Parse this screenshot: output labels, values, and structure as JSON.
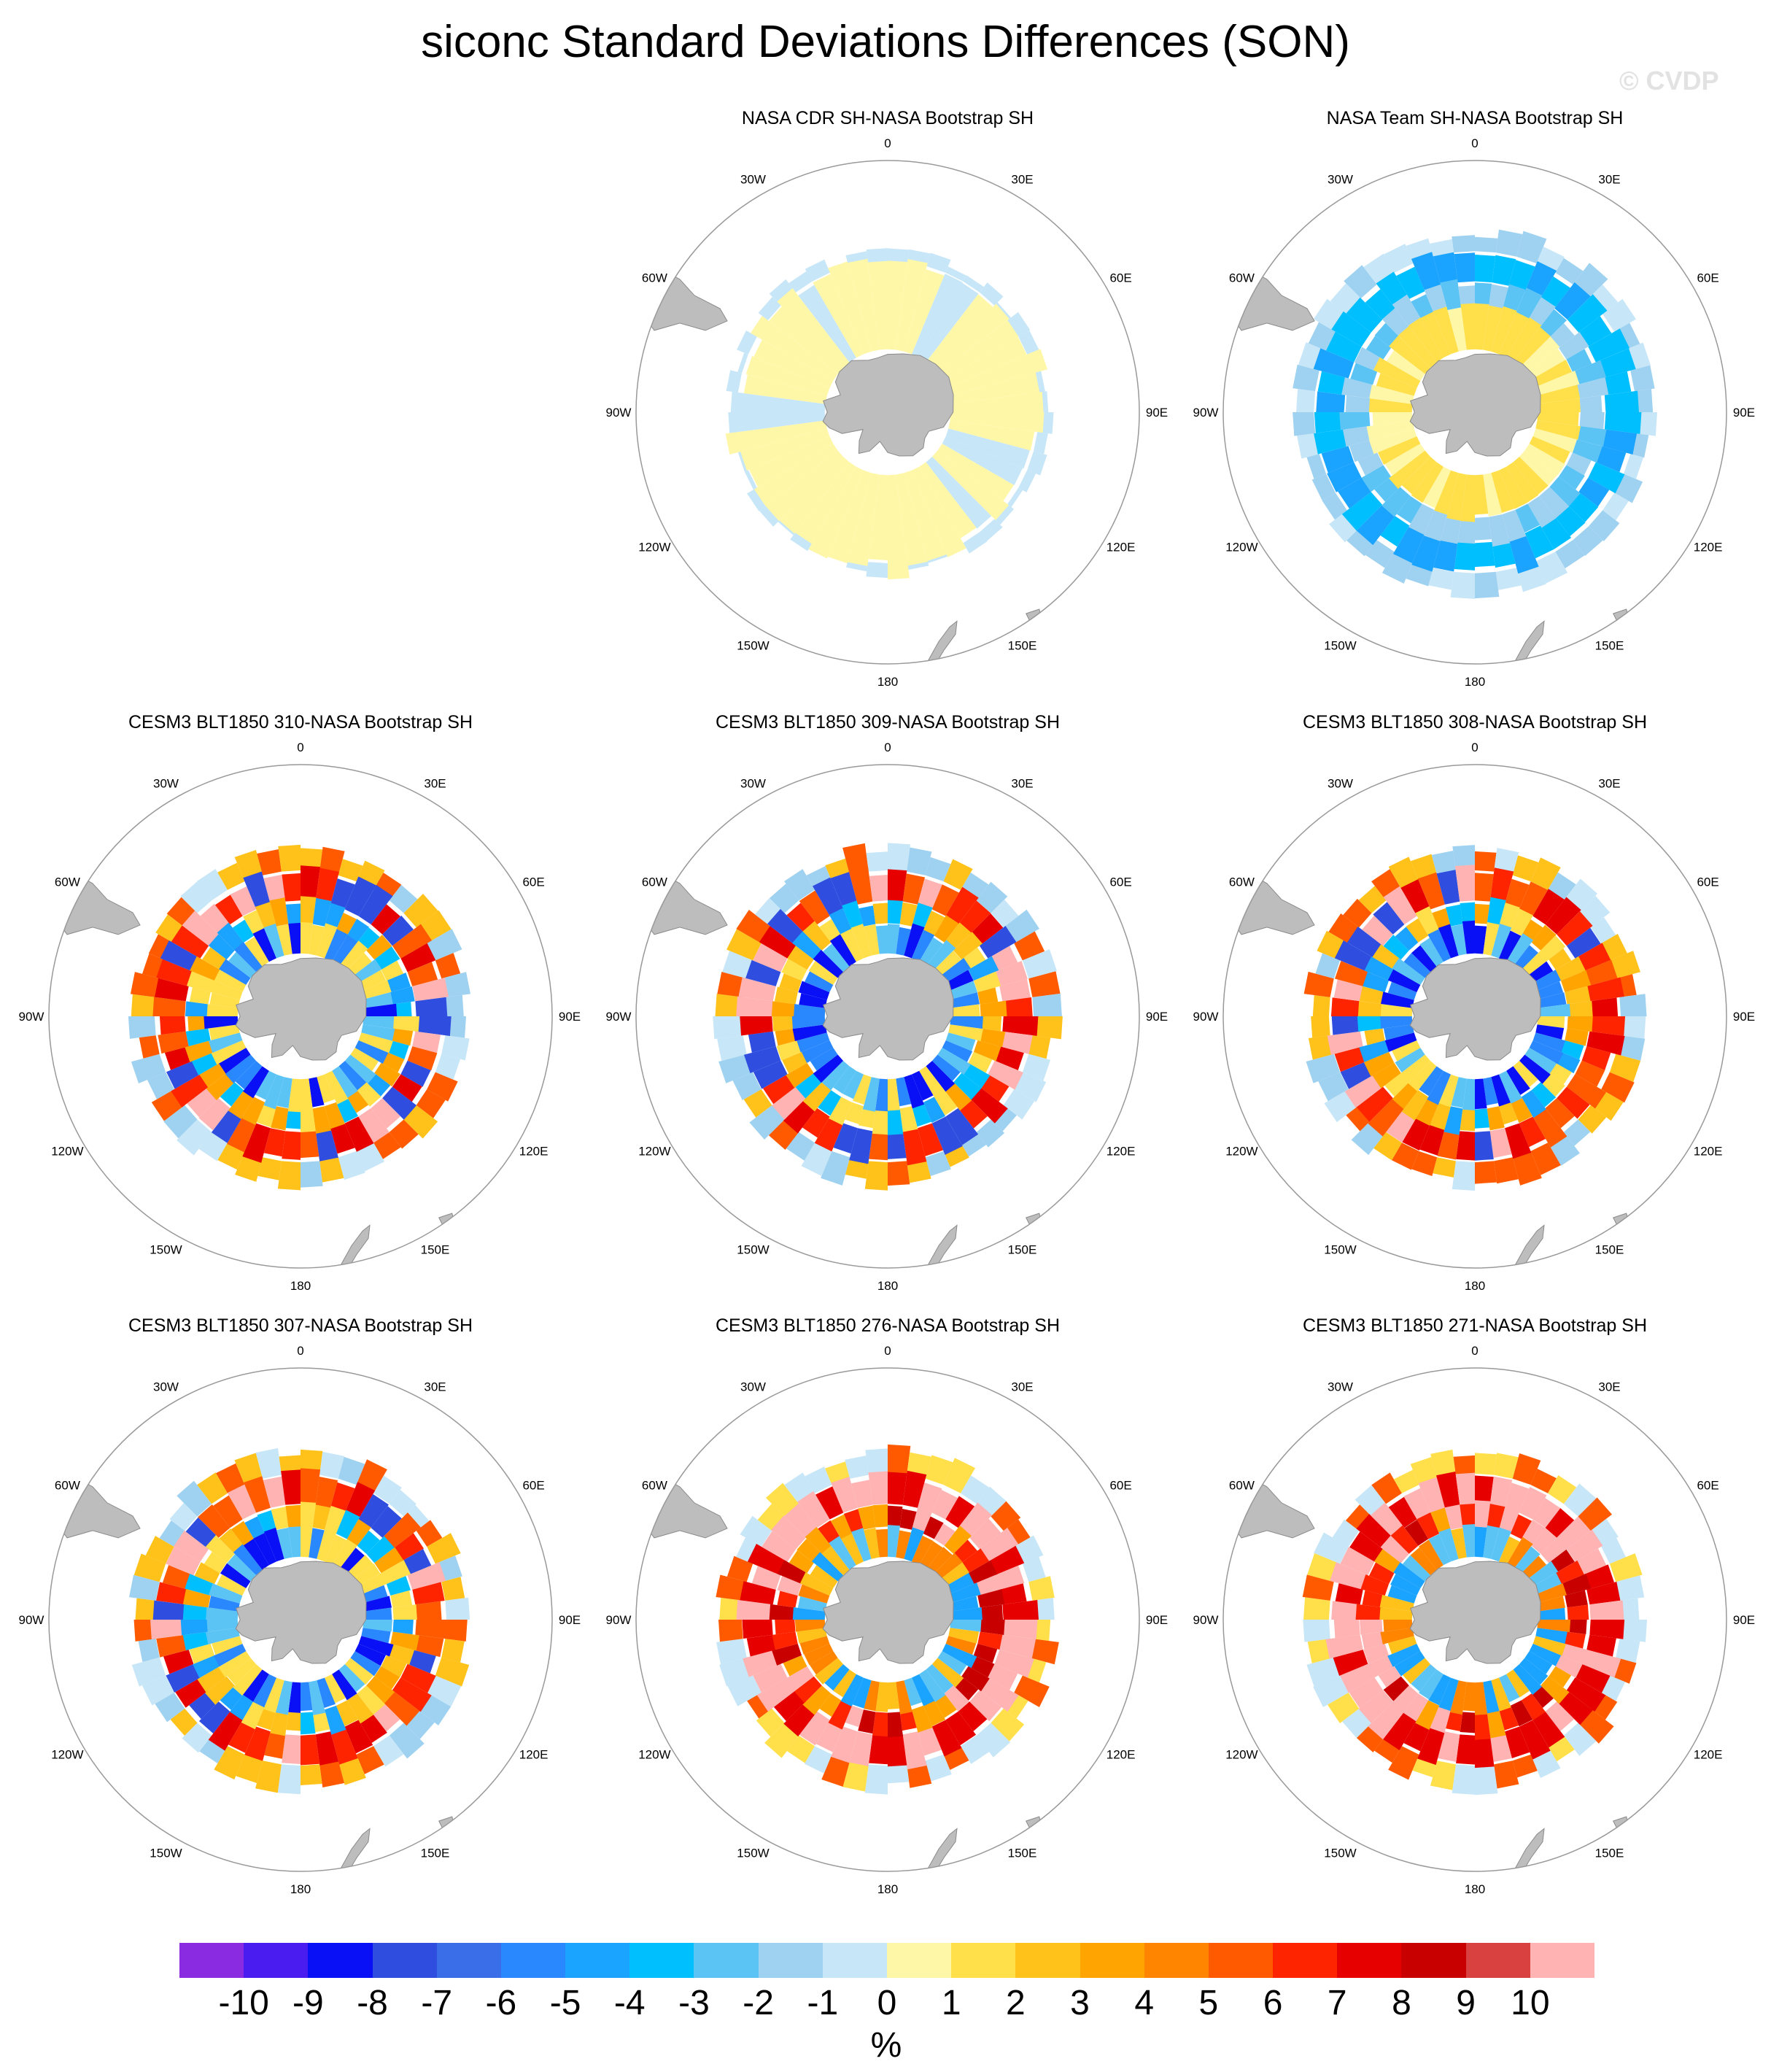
{
  "title": "siconc Standard Deviations Differences (SON)",
  "watermark": "© CVDP",
  "longitude_labels": [
    "0",
    "30E",
    "60E",
    "90E",
    "120E",
    "150E",
    "180",
    "150W",
    "120W",
    "90W",
    "60W",
    "30W"
  ],
  "panels": [
    {
      "title": "NASA CDR SH-NASA Bootstrap SH",
      "row": 0,
      "col": 1,
      "style": "cdr"
    },
    {
      "title": "NASA Team SH-NASA Bootstrap SH",
      "row": 0,
      "col": 2,
      "style": "team"
    },
    {
      "title": "CESM3 BLT1850 310-NASA Bootstrap SH",
      "row": 1,
      "col": 0,
      "style": "model"
    },
    {
      "title": "CESM3 BLT1850 309-NASA Bootstrap SH",
      "row": 1,
      "col": 1,
      "style": "model"
    },
    {
      "title": "CESM3 BLT1850 308-NASA Bootstrap SH",
      "row": 1,
      "col": 2,
      "style": "model"
    },
    {
      "title": "CESM3 BLT1850 307-NASA Bootstrap SH",
      "row": 2,
      "col": 0,
      "style": "model"
    },
    {
      "title": "CESM3 BLT1850 276-NASA Bootstrap SH",
      "row": 2,
      "col": 1,
      "style": "model-warm"
    },
    {
      "title": "CESM3 BLT1850 271-NASA Bootstrap SH",
      "row": 2,
      "col": 2,
      "style": "model-warm"
    }
  ],
  "colorbar": {
    "colors": [
      "#8a2be2",
      "#4b1cf0",
      "#0a10f5",
      "#2f4ee0",
      "#3a6ee8",
      "#2a88ff",
      "#1aa3ff",
      "#00bfff",
      "#5cc4f5",
      "#9fd2f0",
      "#c7e6f7",
      "#fff7a8",
      "#ffe04a",
      "#ffc21a",
      "#ffa400",
      "#ff8400",
      "#ff5a00",
      "#ff2400",
      "#e60000",
      "#c80000",
      "#d94040",
      "#ffb3b3"
    ],
    "labels": [
      "-10",
      "-9",
      "-8",
      "-7",
      "-6",
      "-5",
      "-4",
      "-3",
      "-2",
      "-1",
      "0",
      "1",
      "2",
      "3",
      "4",
      "5",
      "6",
      "7",
      "8",
      "9",
      "10"
    ],
    "units": "%"
  },
  "colors": {
    "land": "#bdbdbd",
    "land_edge": "#8a8a8a",
    "ring": "#999999"
  }
}
